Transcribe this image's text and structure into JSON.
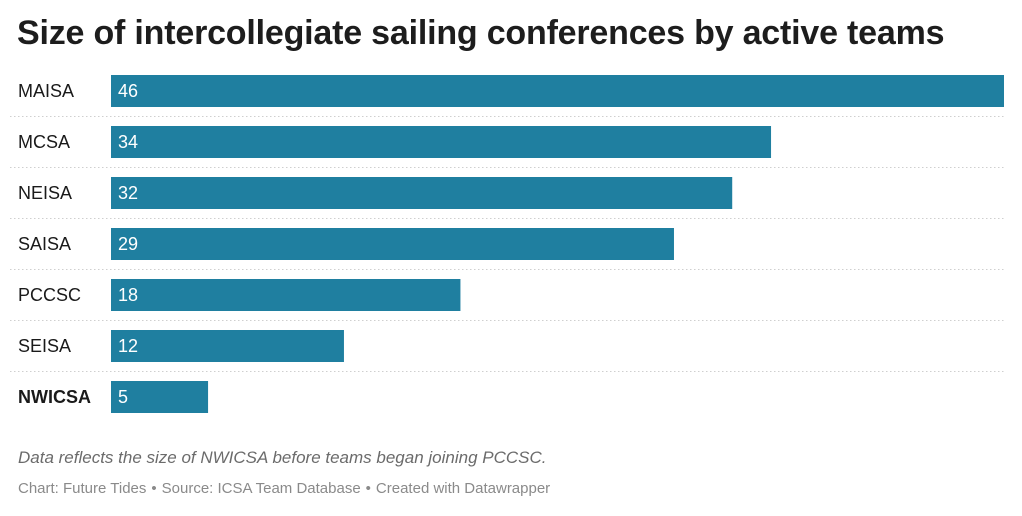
{
  "title": "Size of intercollegiate sailing conferences by active teams",
  "note": "Data reflects the size of NWICSA before teams began joining PCCSC.",
  "credits": {
    "chart": "Chart: Future Tides",
    "source": "Source: ICSA Team Database",
    "created": "Created with Datawrapper",
    "separator": "•"
  },
  "colors": {
    "bar": "#1f7fa0",
    "bar_label": "#ffffff",
    "divider": "#cfcfcf"
  },
  "chart_data": {
    "type": "bar",
    "orientation": "horizontal",
    "categories": [
      "MAISA",
      "MCSA",
      "NEISA",
      "SAISA",
      "PCCSC",
      "SEISA",
      "NWICSA"
    ],
    "values": [
      46,
      34,
      32,
      29,
      18,
      12,
      5
    ],
    "highlighted_category": "NWICSA",
    "xlim": [
      0,
      46
    ],
    "value_labels": "inside-left",
    "grid": false
  }
}
